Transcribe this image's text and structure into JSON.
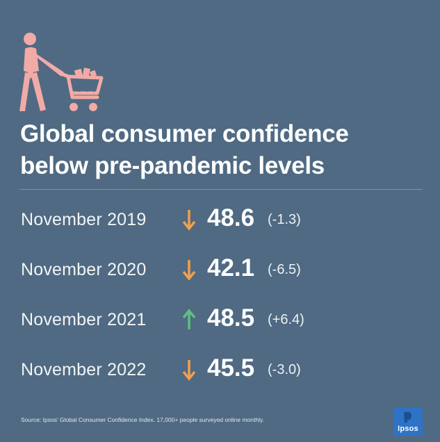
{
  "headline": {
    "line1": "Global consumer confidence",
    "line2": "below pre-pandemic levels"
  },
  "icon": "shopper-with-cart-icon",
  "colors": {
    "background": "#4f6a82",
    "down_arrow": "#f3a04c",
    "up_arrow": "#5fc082",
    "illustration": "#f2aaa6",
    "logo": "#2e73c6"
  },
  "rows": [
    {
      "label": "November 2019",
      "direction": "down",
      "value": "48.6",
      "change": "(-1.3)"
    },
    {
      "label": "November 2020",
      "direction": "down",
      "value": "42.1",
      "change": "(-6.5)"
    },
    {
      "label": "November 2021",
      "direction": "up",
      "value": "48.5",
      "change": "(+6.4)"
    },
    {
      "label": "November 2022",
      "direction": "down",
      "value": "45.5",
      "change": "(-3.0)"
    }
  ],
  "source": "Source: Ipsos' Global Consumer Confidence Index. 17,000+ people surveyed online monthly.",
  "logo": {
    "text": "Ipsos"
  }
}
